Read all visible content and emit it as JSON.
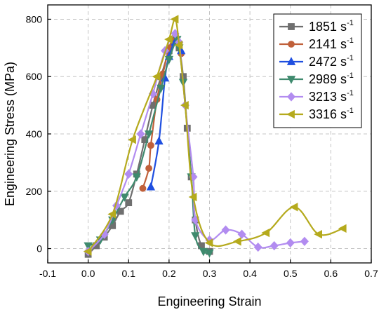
{
  "chart_data": {
    "type": "line",
    "xlabel": "Engineering Strain",
    "ylabel": "Engineering Stress (MPa)",
    "xlim": [
      -0.1,
      0.7
    ],
    "ylim": [
      -50,
      850
    ],
    "xticks": [
      -0.1,
      0.0,
      0.1,
      0.2,
      0.3,
      0.4,
      0.5,
      0.6,
      0.7
    ],
    "xtick_labels": [
      "-0.1",
      "0.0",
      "0.1",
      "0.2",
      "0.3",
      "0.4",
      "0.5",
      "0.6",
      "0.7"
    ],
    "yticks": [
      0,
      200,
      400,
      600,
      800
    ],
    "ytick_labels": [
      "0",
      "200",
      "400",
      "600",
      "800"
    ],
    "grid": true,
    "legend_position": "top-right",
    "legend_unit": "s",
    "legend_exponent": "-1",
    "series": [
      {
        "name": "1851",
        "color": "#6f6f6f",
        "marker": "square",
        "points": [
          [
            0.0,
            -20
          ],
          [
            0.02,
            10
          ],
          [
            0.04,
            40
          ],
          [
            0.06,
            80
          ],
          [
            0.08,
            130
          ],
          [
            0.1,
            160
          ],
          [
            0.12,
            260
          ],
          [
            0.14,
            380
          ],
          [
            0.16,
            500
          ],
          [
            0.18,
            600
          ],
          [
            0.2,
            690
          ],
          [
            0.215,
            730
          ],
          [
            0.225,
            700
          ],
          [
            0.235,
            600
          ],
          [
            0.245,
            420
          ],
          [
            0.255,
            250
          ],
          [
            0.265,
            100
          ],
          [
            0.28,
            10
          ],
          [
            0.3,
            -10
          ]
        ]
      },
      {
        "name": "2141",
        "color": "#c0603a",
        "marker": "circle",
        "points": [
          [
            0.135,
            210
          ],
          [
            0.15,
            280
          ],
          [
            0.155,
            360
          ],
          [
            0.17,
            520
          ],
          [
            0.185,
            610
          ],
          [
            0.2,
            700
          ],
          [
            0.215,
            735
          ],
          [
            0.23,
            680
          ]
        ]
      },
      {
        "name": "2472",
        "color": "#1f4fe0",
        "marker": "triangle-up",
        "points": [
          [
            0.155,
            215
          ],
          [
            0.175,
            375
          ],
          [
            0.19,
            595
          ],
          [
            0.2,
            670
          ],
          [
            0.215,
            720
          ],
          [
            0.23,
            690
          ]
        ]
      },
      {
        "name": "2989",
        "color": "#3f8a6e",
        "marker": "triangle-down",
        "points": [
          [
            0.0,
            10
          ],
          [
            0.03,
            30
          ],
          [
            0.06,
            100
          ],
          [
            0.09,
            180
          ],
          [
            0.12,
            250
          ],
          [
            0.15,
            400
          ],
          [
            0.18,
            560
          ],
          [
            0.2,
            660
          ],
          [
            0.22,
            730
          ],
          [
            0.225,
            700
          ],
          [
            0.235,
            580
          ],
          [
            0.255,
            250
          ],
          [
            0.265,
            45
          ],
          [
            0.285,
            -10
          ],
          [
            0.3,
            -15
          ]
        ]
      },
      {
        "name": "3213",
        "color": "#b28cf0",
        "marker": "diamond",
        "points": [
          [
            0.0,
            -10
          ],
          [
            0.04,
            50
          ],
          [
            0.07,
            150
          ],
          [
            0.1,
            260
          ],
          [
            0.13,
            400
          ],
          [
            0.16,
            540
          ],
          [
            0.19,
            690
          ],
          [
            0.215,
            750
          ],
          [
            0.225,
            720
          ],
          [
            0.24,
            500
          ],
          [
            0.26,
            250
          ],
          [
            0.265,
            100
          ],
          [
            0.3,
            30
          ],
          [
            0.34,
            65
          ],
          [
            0.38,
            50
          ],
          [
            0.42,
            5
          ],
          [
            0.46,
            10
          ],
          [
            0.5,
            20
          ],
          [
            0.535,
            25
          ]
        ]
      },
      {
        "name": "3316",
        "color": "#b5aa1d",
        "marker": "triangle-left",
        "points": [
          [
            0.0,
            -10
          ],
          [
            0.06,
            120
          ],
          [
            0.11,
            380
          ],
          [
            0.17,
            600
          ],
          [
            0.2,
            730
          ],
          [
            0.215,
            800
          ],
          [
            0.225,
            710
          ],
          [
            0.24,
            500
          ],
          [
            0.26,
            180
          ],
          [
            0.3,
            20
          ],
          [
            0.37,
            25
          ],
          [
            0.44,
            55
          ],
          [
            0.51,
            145
          ],
          [
            0.57,
            50
          ],
          [
            0.63,
            70
          ]
        ]
      }
    ]
  }
}
